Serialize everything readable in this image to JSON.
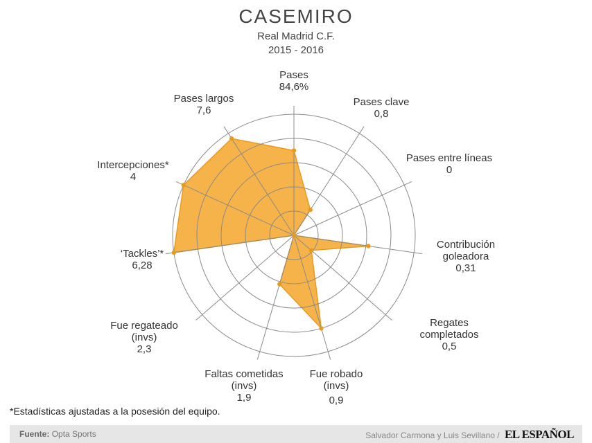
{
  "header": {
    "title": "CASEMIRO",
    "team": "Real Madrid C.F.",
    "season": "2015 - 2016"
  },
  "chart_data": {
    "type": "radar",
    "title": "CASEMIRO",
    "subtitle": "Real Madrid C.F. 2015 - 2016",
    "rings": 5,
    "grid": true,
    "fill_color": "#f5ac3a",
    "point_color": "#e89a1d",
    "grid_color": "#8a8a8a",
    "axes": [
      {
        "label": [
          "Pases"
        ],
        "value_text": "84,6%",
        "normalized": 0.7
      },
      {
        "label": [
          "Pases clave"
        ],
        "value_text": "0,8",
        "normalized": 0.25
      },
      {
        "label": [
          "Pases entre líneas"
        ],
        "value_text": "0",
        "normalized": 0.0
      },
      {
        "label": [
          "Contribución",
          "goleadora"
        ],
        "value_text": "0,31",
        "normalized": 0.62
      },
      {
        "label": [
          "Regates",
          "completados"
        ],
        "value_text": "0,5",
        "normalized": 0.19
      },
      {
        "label": [
          "Fue robado",
          "(invs)"
        ],
        "value_text": "0,9",
        "normalized": 0.8
      },
      {
        "label": [
          "Faltas cometidas",
          "(invs)"
        ],
        "value_text": "1,9",
        "normalized": 0.42
      },
      {
        "label": [
          "Fue regateado",
          "(invs)"
        ],
        "value_text": "2,3",
        "normalized": 0.0
      },
      {
        "label": [
          "‘Tackles’*"
        ],
        "value_text": "6,28",
        "normalized": 1.0
      },
      {
        "label": [
          "Intercepciones*"
        ],
        "value_text": "4",
        "normalized": 1.0
      },
      {
        "label": [
          "Pases largos"
        ],
        "value_text": "7,6",
        "normalized": 0.95
      }
    ]
  },
  "footnote": "*Estadísticas ajustadas a la posesión del equipo.",
  "footer": {
    "source_label": "Fuente:",
    "source_value": "Opta Sports",
    "credit": "Salvador Carmona y Luis Sevillano /",
    "brand": "EL ESPAÑOL"
  }
}
